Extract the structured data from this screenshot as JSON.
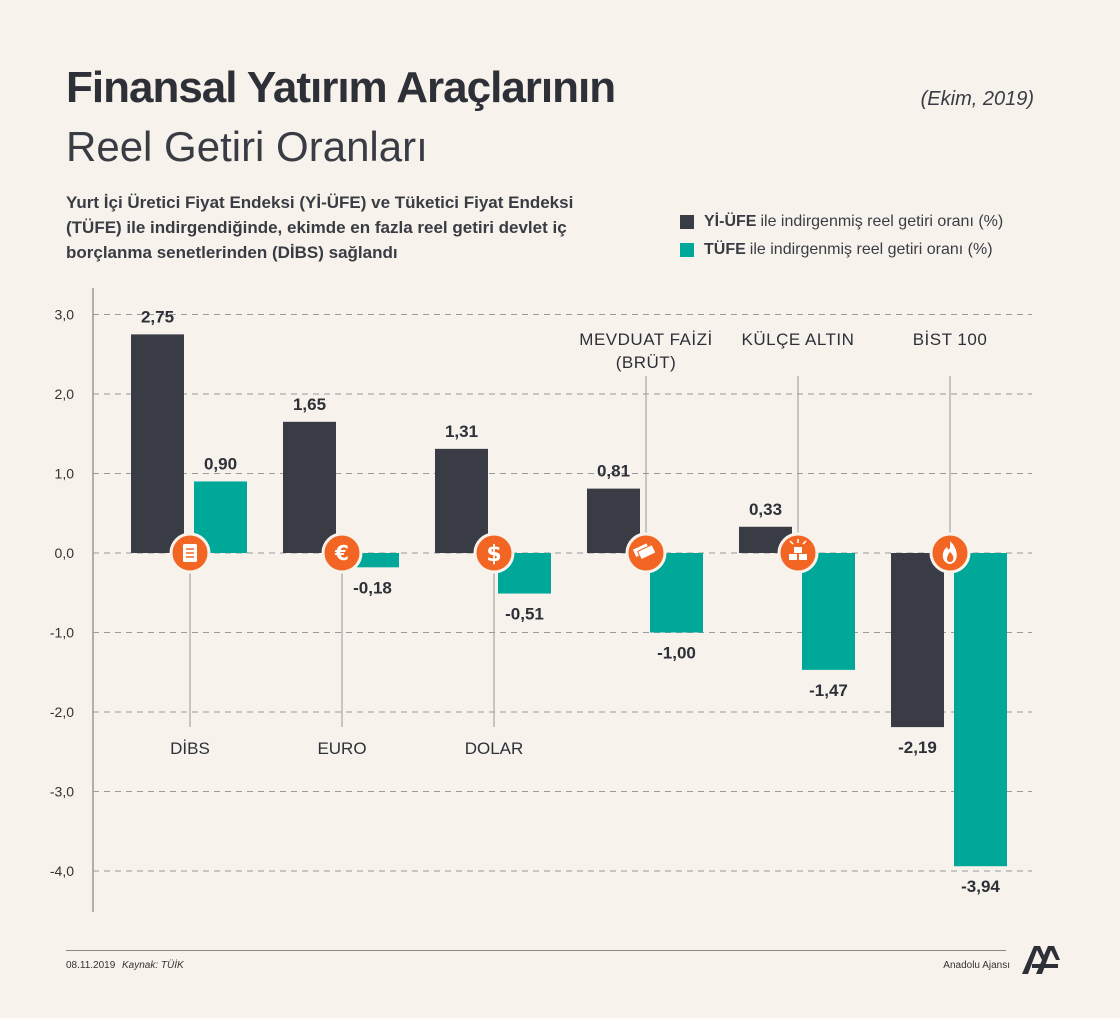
{
  "header": {
    "title_bold": "Finansal Yatırım Araçlarının",
    "title_light": "Reel Getiri Oranları",
    "date": "(Ekim, 2019)",
    "description": "Yurt İçi Üretici Fiyat Endeksi (Yİ-ÜFE) ve Tüketici Fiyat Endeksi (TÜFE) ile indirgendiğinde, ekimde en fazla reel getiri devlet iç borçlanma senetlerinden (DİBS) sağlandı"
  },
  "legend": {
    "items": [
      {
        "bold": "Yİ-ÜFE",
        "text": "ile indirgenmiş reel getiri oranı (%)",
        "color": "#393c45"
      },
      {
        "bold": "TÜFE",
        "text": "ile indirgenmiş reel getiri oranı (%)",
        "color": "#00a89a"
      }
    ]
  },
  "chart_data": {
    "type": "bar",
    "categories": [
      "DİBS",
      "EURO",
      "DOLAR",
      "MEVDUAT FAİZİ (BRÜT)",
      "KÜLÇE ALTIN",
      "BİST 100"
    ],
    "category_lines": [
      [
        "DİBS"
      ],
      [
        "EURO"
      ],
      [
        "DOLAR"
      ],
      [
        "MEVDUAT FAİZİ",
        "(BRÜT)"
      ],
      [
        "KÜLÇE ALTIN"
      ],
      [
        "BİST 100"
      ]
    ],
    "label_position": [
      "below",
      "below",
      "below",
      "above",
      "above",
      "above"
    ],
    "series": [
      {
        "name": "Yİ-ÜFE",
        "values": [
          2.75,
          1.65,
          1.31,
          0.81,
          0.33,
          -2.19
        ],
        "labels": [
          "2,75",
          "1,65",
          "1,31",
          "0,81",
          "0,33",
          "-2,19"
        ],
        "color": "#393c45"
      },
      {
        "name": "TÜFE",
        "values": [
          0.9,
          -0.18,
          -0.51,
          -1.0,
          -1.47,
          -3.94
        ],
        "labels": [
          "0,90",
          "-0,18",
          "-0,51",
          "-1,00",
          "-1,47",
          "-3,94"
        ],
        "color": "#00a89a"
      }
    ],
    "yticks": [
      3.0,
      2.0,
      1.0,
      0.0,
      -1.0,
      -2.0,
      -3.0,
      -4.0
    ],
    "ytick_labels": [
      "3,0",
      "2,0",
      "1,0",
      "0,0",
      "-1,0",
      "-2,0",
      "-3,0",
      "-4,0"
    ],
    "ylim": [
      -4.0,
      3.0
    ],
    "grid": "dashed",
    "icons": [
      "document-icon",
      "euro-icon",
      "dollar-icon",
      "banknote-icon",
      "gold-bars-icon",
      "fire-icon"
    ],
    "icon_color": "#f26522"
  },
  "footer": {
    "date": "08.11.2019",
    "source": "Kaynak: TÜİK",
    "agency": "Anadolu Ajansı"
  }
}
